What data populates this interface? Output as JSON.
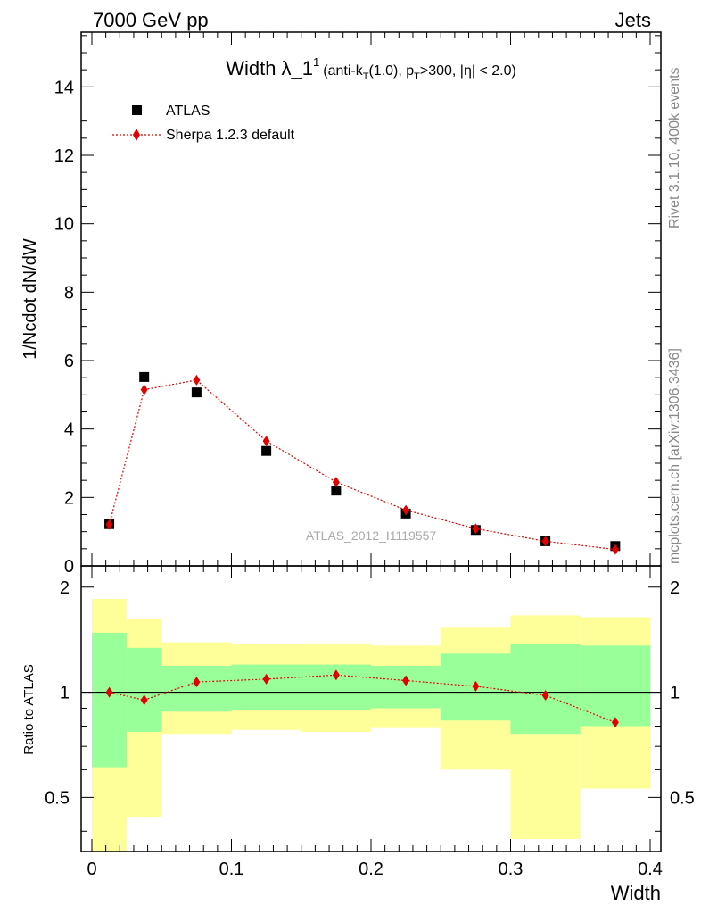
{
  "header": {
    "left": "7000 GeV pp",
    "right": "Jets"
  },
  "side_labels": {
    "rivet": "Rivet 3.1.10,  400k events",
    "mcplots": "mcplots.cern.ch [arXiv:1306.3436]"
  },
  "chart_data": [
    {
      "type": "scatter",
      "title_main": "Width λ_1",
      "title_sup": "1",
      "title_detail_1": "(anti-k",
      "title_detail_sub1": "T",
      "title_detail_2": "(1.0), p",
      "title_detail_sub2": "T",
      "title_detail_3": ">300, |η| < 2.0)",
      "ylabel": "1/Ncdot dN/dW",
      "xlim": [
        0,
        0.4
      ],
      "ylim": [
        0,
        15.6
      ],
      "yticks": [
        0,
        2,
        4,
        6,
        8,
        10,
        12,
        14
      ],
      "ytick_labels": [
        "0",
        "2",
        "4",
        "6",
        "8",
        "10",
        "12",
        "14"
      ],
      "watermark": "ATLAS_2012_I1119557",
      "legend_position": "top-left",
      "series": [
        {
          "name": "ATLAS",
          "style": "markers",
          "color": "#000000",
          "x": [
            0.0125,
            0.0375,
            0.075,
            0.125,
            0.175,
            0.225,
            0.275,
            0.325,
            0.375
          ],
          "y": [
            1.22,
            5.52,
            5.07,
            3.36,
            2.2,
            1.53,
            1.05,
            0.72,
            0.58
          ]
        },
        {
          "name": "Sherpa 1.2.3 default",
          "style": "line+markers",
          "color": "#e00000",
          "x": [
            0.0125,
            0.0375,
            0.075,
            0.125,
            0.175,
            0.225,
            0.275,
            0.325,
            0.375
          ],
          "y": [
            1.21,
            5.15,
            5.43,
            3.65,
            2.45,
            1.63,
            1.09,
            0.72,
            0.48
          ]
        }
      ]
    },
    {
      "type": "scatter",
      "ylabel": "Ratio to ATLAS",
      "xlabel": "Width",
      "xlim": [
        0,
        0.4
      ],
      "ylim": [
        0.35,
        2.3
      ],
      "xticks": [
        0,
        0.1,
        0.2,
        0.3,
        0.4
      ],
      "xtick_labels": [
        "0",
        "0.1",
        "0.2",
        "0.3",
        "0.4"
      ],
      "yticks": [
        0.5,
        1,
        2
      ],
      "ytick_labels": [
        "0.5",
        "1",
        "2"
      ],
      "bins": [
        {
          "lo": 0.0,
          "hi": 0.025,
          "yellow": [
            0.35,
            1.85
          ],
          "green": [
            0.61,
            1.48
          ]
        },
        {
          "lo": 0.025,
          "hi": 0.05,
          "yellow": [
            0.44,
            1.62
          ],
          "green": [
            0.77,
            1.34
          ]
        },
        {
          "lo": 0.05,
          "hi": 0.1,
          "yellow": [
            0.76,
            1.39
          ],
          "green": [
            0.88,
            1.19
          ]
        },
        {
          "lo": 0.1,
          "hi": 0.15,
          "yellow": [
            0.78,
            1.37
          ],
          "green": [
            0.89,
            1.2
          ]
        },
        {
          "lo": 0.15,
          "hi": 0.2,
          "yellow": [
            0.77,
            1.38
          ],
          "green": [
            0.89,
            1.2
          ]
        },
        {
          "lo": 0.2,
          "hi": 0.25,
          "yellow": [
            0.79,
            1.36
          ],
          "green": [
            0.9,
            1.19
          ]
        },
        {
          "lo": 0.25,
          "hi": 0.3,
          "yellow": [
            0.6,
            1.53
          ],
          "green": [
            0.83,
            1.29
          ]
        },
        {
          "lo": 0.3,
          "hi": 0.35,
          "yellow": [
            0.38,
            1.66
          ],
          "green": [
            0.76,
            1.37
          ]
        },
        {
          "lo": 0.35,
          "hi": 0.4,
          "yellow": [
            0.53,
            1.64
          ],
          "green": [
            0.8,
            1.36
          ]
        }
      ],
      "series": [
        {
          "name": "Sherpa 1.2.3 default",
          "color": "#e00000",
          "x": [
            0.0125,
            0.0375,
            0.075,
            0.125,
            0.175,
            0.225,
            0.275,
            0.325,
            0.375
          ],
          "y": [
            1.0,
            0.95,
            1.07,
            1.09,
            1.12,
            1.08,
            1.04,
            0.98,
            0.82
          ]
        }
      ]
    }
  ]
}
